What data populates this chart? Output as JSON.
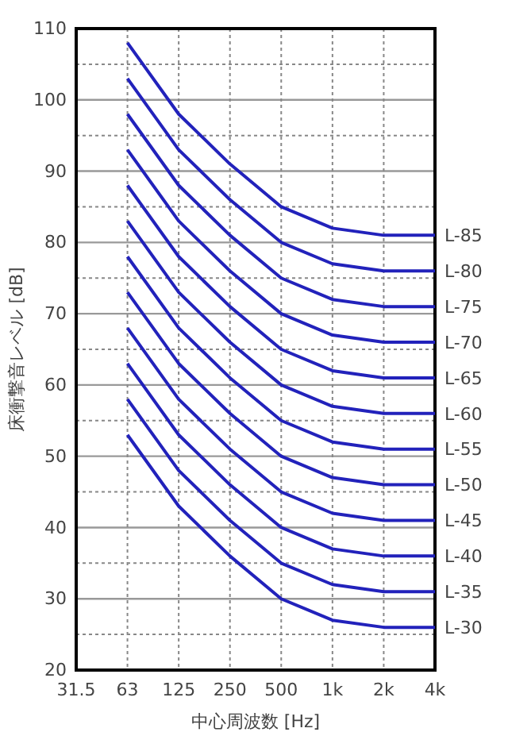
{
  "chart_data": {
    "type": "line",
    "xlabel": "中心周波数 [Hz]",
    "ylabel": "床衝撃音レベル [dB]",
    "categories": [
      "31.5",
      "63",
      "125",
      "250",
      "500",
      "1k",
      "2k",
      "4k"
    ],
    "ylim": [
      20,
      110
    ],
    "yticks": [
      20,
      {
        "value": 25,
        "label": null
      },
      30,
      {
        "value": 35,
        "label": null
      },
      40,
      {
        "value": 45,
        "label": null
      },
      50,
      {
        "value": 55,
        "label": null
      },
      60,
      {
        "value": 65,
        "label": null
      },
      70,
      {
        "value": 75,
        "label": null
      },
      80,
      {
        "value": 85,
        "label": null
      },
      90,
      {
        "value": 95,
        "label": null
      },
      100,
      {
        "value": 105,
        "label": null
      },
      110
    ],
    "grid": true,
    "marker": "none",
    "line_style": "solid",
    "series": [
      {
        "name": "L-85",
        "color": "#2222bb",
        "values": [
          null,
          108,
          98,
          91,
          85,
          82,
          81,
          81
        ]
      },
      {
        "name": "L-80",
        "color": "#2222bb",
        "values": [
          null,
          103,
          93,
          86,
          80,
          77,
          76,
          76
        ]
      },
      {
        "name": "L-75",
        "color": "#2222bb",
        "values": [
          null,
          98,
          88,
          81,
          75,
          72,
          71,
          71
        ]
      },
      {
        "name": "L-70",
        "color": "#2222bb",
        "values": [
          null,
          93,
          83,
          76,
          70,
          67,
          66,
          66
        ]
      },
      {
        "name": "L-65",
        "color": "#2222bb",
        "values": [
          null,
          88,
          78,
          71,
          65,
          62,
          61,
          61
        ]
      },
      {
        "name": "L-60",
        "color": "#2222bb",
        "values": [
          null,
          83,
          73,
          66,
          60,
          57,
          56,
          56
        ]
      },
      {
        "name": "L-55",
        "color": "#2222bb",
        "values": [
          null,
          78,
          68,
          61,
          55,
          52,
          51,
          51
        ]
      },
      {
        "name": "L-50",
        "color": "#2222bb",
        "values": [
          null,
          73,
          63,
          56,
          50,
          47,
          46,
          46
        ]
      },
      {
        "name": "L-45",
        "color": "#2222bb",
        "values": [
          null,
          68,
          58,
          51,
          45,
          42,
          41,
          41
        ]
      },
      {
        "name": "L-40",
        "color": "#2222bb",
        "values": [
          null,
          63,
          53,
          46,
          40,
          37,
          36,
          36
        ]
      },
      {
        "name": "L-35",
        "color": "#2222bb",
        "values": [
          null,
          58,
          48,
          41,
          35,
          32,
          31,
          31
        ]
      },
      {
        "name": "L-30",
        "color": "#2222bb",
        "values": [
          null,
          53,
          43,
          36,
          30,
          27,
          26,
          26
        ]
      }
    ]
  }
}
